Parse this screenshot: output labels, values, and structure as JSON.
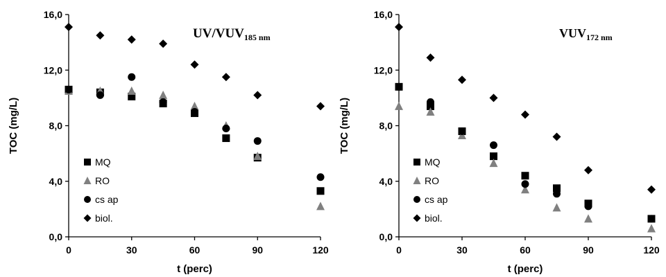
{
  "chart_data": [
    {
      "type": "scatter",
      "title_main": "UV/VUV",
      "title_sub": "185 nm",
      "xlabel": "t (perc)",
      "ylabel": "TOC (mg/L)",
      "xlim": [
        0,
        120
      ],
      "ylim": [
        0,
        16
      ],
      "xticks": [
        "0",
        "30",
        "60",
        "90",
        "120"
      ],
      "yticks": [
        "0,0",
        "4,0",
        "8,0",
        "12,0",
        "16,0"
      ],
      "grid": false,
      "legend_position": "bottom-left",
      "series": [
        {
          "name": "MQ",
          "marker": "square",
          "color": "#000000",
          "points": [
            [
              0,
              10.6
            ],
            [
              15,
              10.4
            ],
            [
              30,
              10.1
            ],
            [
              45,
              9.6
            ],
            [
              60,
              8.9
            ],
            [
              75,
              7.1
            ],
            [
              90,
              5.7
            ],
            [
              120,
              3.3
            ]
          ]
        },
        {
          "name": "RO",
          "marker": "triangle",
          "color": "#808080",
          "points": [
            [
              0,
              10.5
            ],
            [
              15,
              10.5
            ],
            [
              30,
              10.5
            ],
            [
              45,
              10.2
            ],
            [
              60,
              9.4
            ],
            [
              75,
              8.0
            ],
            [
              90,
              5.8
            ],
            [
              120,
              2.2
            ]
          ]
        },
        {
          "name": "cs ap",
          "marker": "circle",
          "color": "#000000",
          "points": [
            [
              0,
              10.6
            ],
            [
              15,
              10.2
            ],
            [
              30,
              11.5
            ],
            [
              45,
              9.7
            ],
            [
              60,
              9.0
            ],
            [
              75,
              7.8
            ],
            [
              90,
              6.9
            ],
            [
              120,
              4.3
            ]
          ]
        },
        {
          "name": "biol.",
          "marker": "diamond",
          "color": "#000000",
          "points": [
            [
              0,
              15.1
            ],
            [
              15,
              14.5
            ],
            [
              30,
              14.2
            ],
            [
              45,
              13.9
            ],
            [
              60,
              12.4
            ],
            [
              75,
              11.5
            ],
            [
              90,
              10.2
            ],
            [
              120,
              9.4
            ]
          ]
        }
      ]
    },
    {
      "type": "scatter",
      "title_main": "VUV",
      "title_sub": "172 nm",
      "xlabel": "t (perc)",
      "ylabel": "TOC (mg/L)",
      "xlim": [
        0,
        120
      ],
      "ylim": [
        0,
        16
      ],
      "xticks": [
        "0",
        "30",
        "60",
        "90",
        "120"
      ],
      "yticks": [
        "0,0",
        "4,0",
        "8,0",
        "12,0",
        "16,0"
      ],
      "grid": false,
      "legend_position": "bottom-left",
      "series": [
        {
          "name": "MQ",
          "marker": "square",
          "color": "#000000",
          "points": [
            [
              0,
              10.8
            ],
            [
              15,
              9.4
            ],
            [
              30,
              7.6
            ],
            [
              45,
              5.8
            ],
            [
              60,
              4.4
            ],
            [
              75,
              3.5
            ],
            [
              90,
              2.4
            ],
            [
              120,
              1.3
            ]
          ]
        },
        {
          "name": "RO",
          "marker": "triangle",
          "color": "#808080",
          "points": [
            [
              0,
              9.4
            ],
            [
              15,
              9.0
            ],
            [
              30,
              7.3
            ],
            [
              45,
              5.3
            ],
            [
              60,
              3.4
            ],
            [
              75,
              2.1
            ],
            [
              90,
              1.3
            ],
            [
              120,
              0.6
            ]
          ]
        },
        {
          "name": "cs ap",
          "marker": "circle",
          "color": "#000000",
          "points": [
            [
              0,
              10.8
            ],
            [
              15,
              9.7
            ],
            [
              30,
              7.6
            ],
            [
              45,
              6.6
            ],
            [
              60,
              3.8
            ],
            [
              75,
              3.1
            ],
            [
              90,
              2.2
            ],
            [
              120,
              1.3
            ]
          ]
        },
        {
          "name": "biol.",
          "marker": "diamond",
          "color": "#000000",
          "points": [
            [
              0,
              15.1
            ],
            [
              15,
              12.9
            ],
            [
              30,
              11.3
            ],
            [
              45,
              10.0
            ],
            [
              60,
              8.8
            ],
            [
              75,
              7.2
            ],
            [
              90,
              4.8
            ],
            [
              120,
              3.4
            ]
          ]
        }
      ]
    }
  ]
}
